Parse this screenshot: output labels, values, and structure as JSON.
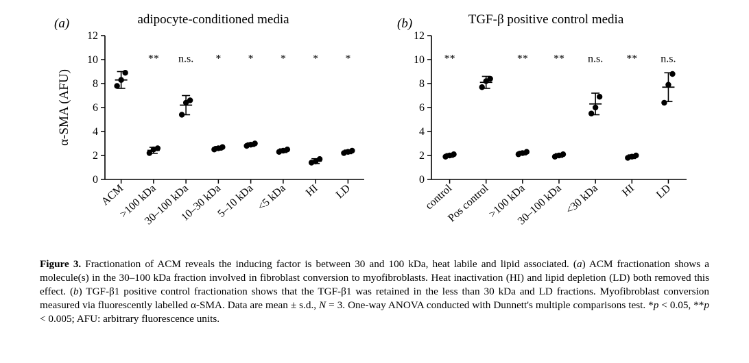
{
  "figure_label": "Figure 3.",
  "caption_html": "Fractionation of ACM reveals the inducing factor is between 30 and 100 kDa, heat labile and lipid associated. (<i>a</i>) ACM fractionation shows a molecule(s) in the 30–100 kDa fraction involved in fibroblast conversion to myofibroblasts. Heat inactivation (HI) and lipid depletion (LD) both removed this effect. (<i>b</i>) TGF-β1 positive control fractionation shows that the TGF-β1 was retained in the less than 30 kDa and LD fractions. Myofibroblast conversion measured via fluorescently labelled α-SMA. Data are mean ± s.d., <i>N</i> = 3. One-way ANOVA conducted with Dunnett's multiple comparisons test. *<i>p</i> &lt; 0.05, **<i>p</i> &lt; 0.005; AFU: arbitrary fluorescence units.",
  "ylabel": "α-SMA (AFU)",
  "ylim": [
    0,
    12
  ],
  "ytick_step": 2,
  "point_color": "#000000",
  "axis_color": "#000000",
  "background_color": "#ffffff",
  "tick_fontsize": 16,
  "title_fontsize": 19,
  "label_fontsize": 19,
  "sig_fontsize": 16,
  "marker_radius": 4.2,
  "err_cap_half": 6,
  "sig_y": 9.8,
  "panels": {
    "a": {
      "letter": "(a)",
      "title": "adipocyte-conditioned media",
      "categories": [
        "ACM",
        ">100 kDa",
        "30–100 kDa",
        "10–30 kDa",
        "5–10 kDa",
        "<5 kDa",
        "HI",
        "LD"
      ],
      "sig": [
        "",
        "**",
        "n.s.",
        "*",
        "*",
        "*",
        "*",
        "*"
      ],
      "points": [
        [
          7.8,
          8.3,
          8.9
        ],
        [
          2.2,
          2.5,
          2.6
        ],
        [
          5.4,
          6.4,
          6.6
        ],
        [
          2.5,
          2.6,
          2.7
        ],
        [
          2.8,
          2.9,
          3.0
        ],
        [
          2.3,
          2.4,
          2.5
        ],
        [
          1.4,
          1.5,
          1.7
        ],
        [
          2.2,
          2.3,
          2.4
        ]
      ],
      "mean": [
        8.3,
        2.43,
        6.2,
        2.6,
        2.9,
        2.4,
        1.53,
        2.3
      ],
      "sd": [
        0.7,
        0.25,
        0.8,
        0.15,
        0.15,
        0.15,
        0.2,
        0.15
      ]
    },
    "b": {
      "letter": "(b)",
      "title": "TGF-β positive control media",
      "categories": [
        "control",
        "Pos control",
        ">100 kDa",
        "30–100 kDa",
        "<30 kDa",
        "HI",
        "LD"
      ],
      "sig": [
        "**",
        "",
        "**",
        "**",
        "n.s.",
        "**",
        "n.s."
      ],
      "points": [
        [
          1.9,
          2.0,
          2.1
        ],
        [
          7.7,
          8.2,
          8.4
        ],
        [
          2.1,
          2.2,
          2.3
        ],
        [
          1.9,
          2.0,
          2.1
        ],
        [
          5.5,
          6.0,
          6.9
        ],
        [
          1.8,
          1.9,
          2.0
        ],
        [
          6.4,
          7.9,
          8.8
        ]
      ],
      "mean": [
        2.0,
        8.1,
        2.2,
        2.0,
        6.3,
        1.9,
        7.7
      ],
      "sd": [
        0.15,
        0.5,
        0.15,
        0.15,
        0.9,
        0.15,
        1.2
      ]
    }
  }
}
